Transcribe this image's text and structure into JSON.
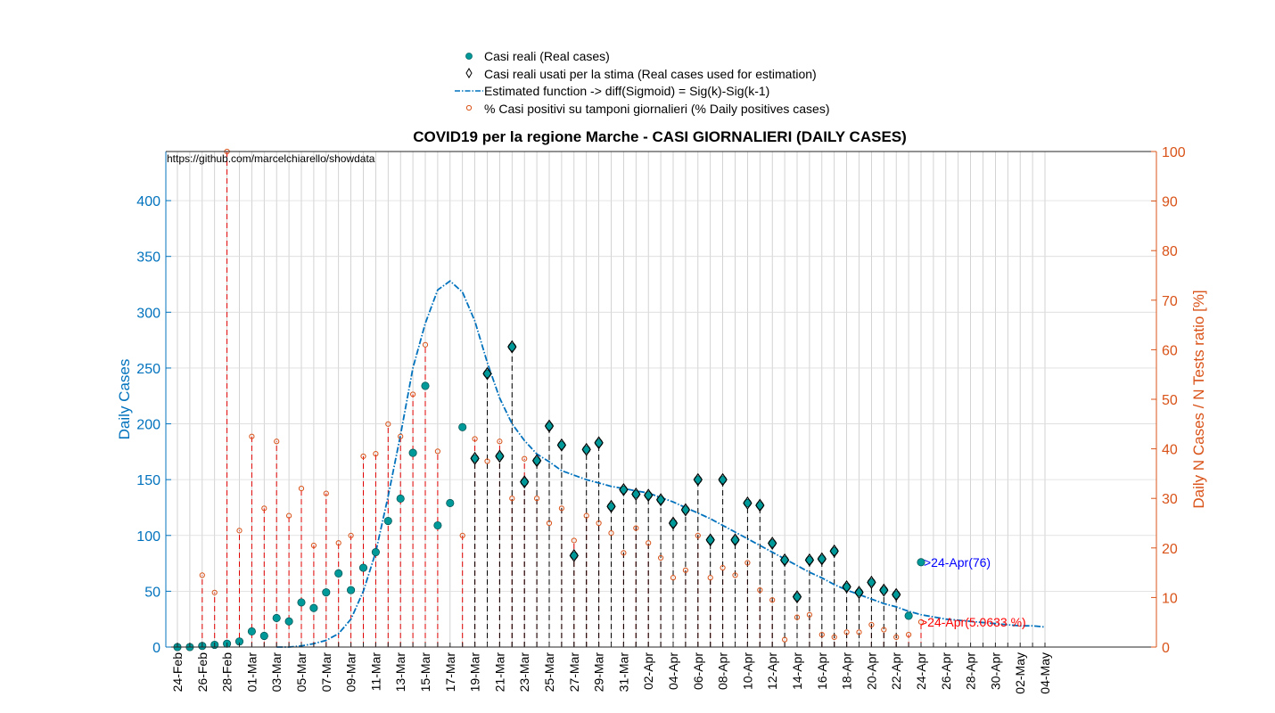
{
  "chart_data": {
    "type": "scatter",
    "title": "COVID19 per la regione Marche - CASI GIORNALIERI (DAILY CASES)",
    "watermark": "https://github.com/marcelchiarello/showdata",
    "ylabel_left": "Daily Cases",
    "ylabel_right": "Daily N Cases / N Tests ratio [%]",
    "ylim_left": [
      0,
      444
    ],
    "ylim_right": [
      0,
      100
    ],
    "yticks_left": [
      "0",
      "50",
      "100",
      "150",
      "200",
      "250",
      "300",
      "350",
      "400"
    ],
    "yticks_right": [
      "0",
      "10",
      "20",
      "30",
      "40",
      "50",
      "60",
      "70",
      "80",
      "90",
      "100"
    ],
    "grid": true,
    "legend_position": "top-center",
    "x_dates": [
      "24-Feb",
      "25-Feb",
      "26-Feb",
      "27-Feb",
      "28-Feb",
      "29-Feb",
      "01-Mar",
      "02-Mar",
      "03-Mar",
      "04-Mar",
      "05-Mar",
      "06-Mar",
      "07-Mar",
      "08-Mar",
      "09-Mar",
      "10-Mar",
      "11-Mar",
      "12-Mar",
      "13-Mar",
      "14-Mar",
      "15-Mar",
      "16-Mar",
      "17-Mar",
      "18-Mar",
      "19-Mar",
      "20-Mar",
      "21-Mar",
      "22-Mar",
      "23-Mar",
      "24-Mar",
      "25-Mar",
      "26-Mar",
      "27-Mar",
      "28-Mar",
      "29-Mar",
      "30-Mar",
      "31-Mar",
      "01-Apr",
      "02-Apr",
      "03-Apr",
      "04-Apr",
      "05-Apr",
      "06-Apr",
      "07-Apr",
      "08-Apr",
      "09-Apr",
      "10-Apr",
      "11-Apr",
      "12-Apr",
      "13-Apr",
      "14-Apr",
      "15-Apr",
      "16-Apr",
      "17-Apr",
      "18-Apr",
      "19-Apr",
      "20-Apr",
      "21-Apr",
      "22-Apr",
      "23-Apr",
      "24-Apr",
      "25-Apr",
      "26-Apr",
      "27-Apr",
      "28-Apr",
      "29-Apr",
      "30-Apr",
      "01-May",
      "02-May",
      "03-May",
      "04-May"
    ],
    "x_tick_labels": [
      "24-Feb",
      "26-Feb",
      "28-Feb",
      "01-Mar",
      "03-Mar",
      "05-Mar",
      "07-Mar",
      "09-Mar",
      "11-Mar",
      "13-Mar",
      "15-Mar",
      "17-Mar",
      "19-Mar",
      "21-Mar",
      "23-Mar",
      "25-Mar",
      "27-Mar",
      "29-Mar",
      "31-Mar",
      "02-Apr",
      "04-Apr",
      "06-Apr",
      "08-Apr",
      "10-Apr",
      "12-Apr",
      "14-Apr",
      "16-Apr",
      "18-Apr",
      "20-Apr",
      "22-Apr",
      "24-Apr",
      "26-Apr",
      "28-Apr",
      "30-Apr",
      "02-May",
      "04-May"
    ],
    "x_tick_indices": [
      0,
      2,
      4,
      6,
      8,
      10,
      12,
      14,
      16,
      18,
      20,
      22,
      24,
      26,
      28,
      30,
      32,
      34,
      36,
      38,
      40,
      42,
      44,
      46,
      48,
      50,
      52,
      54,
      56,
      58,
      60,
      62,
      64,
      66,
      68,
      70
    ],
    "series": [
      {
        "name": "Casi reali (Real cases)",
        "color": "#009999",
        "axis": "left",
        "values": [
          0,
          0,
          1,
          2,
          3,
          5,
          14,
          10,
          26,
          23,
          40,
          35,
          49,
          66,
          51,
          71,
          85,
          113,
          133,
          174,
          234,
          109,
          129,
          197,
          169,
          245,
          171,
          269,
          148,
          167,
          198,
          181,
          82,
          177,
          183,
          126,
          141,
          137,
          136,
          132,
          111,
          123,
          150,
          96,
          150,
          96,
          129,
          127,
          93,
          78,
          45,
          78,
          79,
          86,
          54,
          49,
          58,
          51,
          47,
          28,
          76
        ]
      },
      {
        "name": "Casi reali usati per la stima (Real cases used for estimation)",
        "color": "#000000",
        "axis": "left",
        "start_index": 24,
        "values": [
          169,
          245,
          171,
          269,
          148,
          167,
          198,
          181,
          82,
          177,
          183,
          126,
          141,
          137,
          136,
          132,
          111,
          123,
          150,
          96,
          150,
          96,
          129,
          127,
          93,
          78,
          45,
          78,
          79,
          86,
          54,
          49,
          58,
          51,
          47
        ]
      },
      {
        "name": "Estimated function -> diff(Sigmoid) = Sig(k)-Sig(k-1)",
        "color": "#0072bd",
        "axis": "left",
        "x": [
          8,
          9,
          10,
          11,
          12,
          13,
          14,
          15,
          16,
          17,
          18,
          19,
          20,
          21,
          22,
          23,
          24,
          25,
          26,
          27,
          28,
          29,
          30,
          31,
          32,
          33,
          34,
          35,
          36,
          37,
          38,
          39,
          40,
          41,
          42,
          43,
          44,
          45,
          46,
          47,
          48,
          49,
          50,
          51,
          52,
          53,
          54,
          55,
          56,
          57,
          58,
          59,
          60,
          61,
          62,
          63,
          64,
          65,
          66,
          67,
          68,
          69,
          70
        ],
        "values": [
          0,
          0,
          1,
          3,
          6,
          12,
          25,
          50,
          85,
          135,
          190,
          250,
          290,
          320,
          328,
          318,
          292,
          255,
          223,
          200,
          185,
          173,
          166,
          158,
          154,
          150,
          147,
          144,
          142,
          140,
          138,
          134,
          130,
          125,
          120,
          115,
          109,
          103,
          97,
          91,
          85,
          79,
          73,
          67,
          62,
          56,
          51,
          47,
          43,
          39,
          36,
          32,
          29,
          27,
          25,
          24,
          23,
          22,
          21,
          20,
          19,
          19,
          18
        ]
      },
      {
        "name": "% Casi positivi su tamponi giornalieri (% Daily positives cases)",
        "color": "#d95319",
        "axis": "right",
        "values": [
          0,
          0,
          14.5,
          11,
          100,
          23.5,
          42.5,
          28,
          41.5,
          26.5,
          32,
          20.5,
          31,
          21,
          22.5,
          38.5,
          39,
          45,
          42.5,
          51,
          61,
          39.5,
          null,
          22.5,
          42,
          37.5,
          41.5,
          30,
          38,
          30,
          25,
          28,
          21.5,
          26.5,
          25,
          23,
          19,
          24,
          21,
          18,
          14,
          15.5,
          22.5,
          14,
          16,
          14.5,
          17,
          11.5,
          9.5,
          1.5,
          6,
          6.5,
          2.5,
          2,
          3,
          3,
          4.5,
          3.5,
          2,
          2.5,
          5.0633
        ]
      }
    ],
    "annotations": {
      "last_cases": ">24-Apr(76)",
      "last_ratio": ">24-Apr(5.0633 %)"
    }
  }
}
